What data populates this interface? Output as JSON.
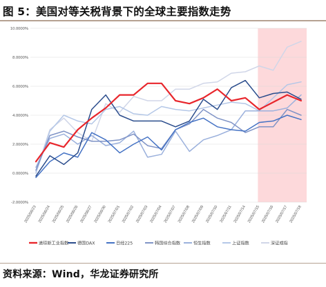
{
  "figure_title": "图 5：美国对等关税背景下的全球主要指数走势",
  "source_note": "资料来源：Wind，华龙证券研究所",
  "colors": {
    "highlight_band": "#fdd9db",
    "grid": "#d9d9d9",
    "rule": "#b5a191"
  },
  "chart_data": {
    "type": "line",
    "y_ticks": [
      "10.0000%",
      "8.0000%",
      "6.0000%",
      "4.0000%",
      "2.0000%",
      "0.0000%",
      "-2.0000%"
    ],
    "y_tick_values": [
      10,
      8,
      6,
      4,
      2,
      0,
      -2
    ],
    "ylim": [
      -2,
      10
    ],
    "x": [
      "2025/06/23",
      "2025/06/24",
      "2025/06/25",
      "2025/06/26",
      "2025/06/27",
      "2025/06/30",
      "2025/07/01",
      "2025/07/02",
      "2025/07/03",
      "2025/07/04",
      "2025/07/07",
      "2025/07/08",
      "2025/07/09",
      "2025/07/10",
      "2025/07/11",
      "2025/07/14",
      "2025/07/15",
      "2025/07/16",
      "2025/07/17",
      "2025/07/18"
    ],
    "highlight_range": [
      "2025/07/15",
      "2025/07/18"
    ],
    "grid": true,
    "legend_position": "bottom",
    "series": [
      {
        "name": "道琼斯工业指数",
        "color": "#e8262c",
        "width": 2.2,
        "values": [
          0.8,
          2.1,
          1.8,
          3.0,
          3.8,
          4.5,
          5.4,
          5.4,
          6.2,
          6.2,
          5.0,
          4.8,
          5.2,
          5.8,
          5.0,
          5.2,
          4.4,
          4.9,
          5.4,
          5.0
        ]
      },
      {
        "name": "德国DAX",
        "color": "#2a4c8c",
        "width": 1.5,
        "values": [
          -0.2,
          1.2,
          0.6,
          1.4,
          4.4,
          5.4,
          4.0,
          3.6,
          3.6,
          3.6,
          3.2,
          3.6,
          5.1,
          4.4,
          5.9,
          6.4,
          5.2,
          5.5,
          5.6,
          5.1
        ]
      },
      {
        "name": "日经225",
        "color": "#4472c4",
        "width": 1.5,
        "values": [
          -0.3,
          0.8,
          1.4,
          1.1,
          2.8,
          2.3,
          1.4,
          2.0,
          2.5,
          1.6,
          3.0,
          3.5,
          3.8,
          3.2,
          3.0,
          2.9,
          3.5,
          3.6,
          4.0,
          3.7
        ]
      },
      {
        "name": "韩国综合指数",
        "color": "#7f93c6",
        "width": 1.5,
        "values": [
          0.2,
          2.6,
          2.9,
          2.5,
          2.2,
          2.2,
          2.3,
          2.7,
          1.9,
          1.7,
          3.0,
          3.4,
          4.4,
          3.8,
          3.5,
          2.8,
          3.2,
          3.2,
          4.4,
          4.0
        ]
      },
      {
        "name": "恒生指数",
        "color": "#9ab0dc",
        "width": 1.5,
        "values": [
          0.4,
          2.4,
          2.7,
          2.0,
          2.6,
          1.9,
          2.1,
          2.9,
          1.1,
          1.3,
          2.9,
          1.5,
          2.3,
          2.6,
          3.0,
          4.3,
          4.3,
          4.3,
          4.5,
          5.4
        ]
      },
      {
        "name": "上证指数",
        "color": "#b4c7e7",
        "width": 1.5,
        "values": [
          0.0,
          2.9,
          4.0,
          3.6,
          3.4,
          4.4,
          4.6,
          4.1,
          4.0,
          4.6,
          4.4,
          4.3,
          4.5,
          4.7,
          4.9,
          4.8,
          4.3,
          5.2,
          6.1,
          6.3
        ]
      },
      {
        "name": "深证成指",
        "color": "#d0d6e8",
        "width": 1.5,
        "values": [
          0.1,
          3.0,
          3.8,
          2.8,
          2.2,
          4.8,
          4.2,
          5.3,
          5.0,
          5.0,
          5.8,
          5.8,
          6.2,
          6.3,
          6.9,
          7.0,
          7.4,
          7.1,
          8.7,
          9.1
        ]
      }
    ]
  }
}
